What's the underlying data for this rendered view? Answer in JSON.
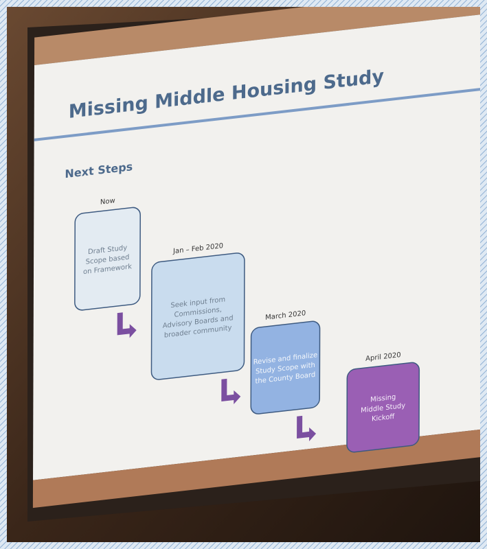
{
  "title": "Missing Middle Housing Study",
  "subtitle": "Next Steps",
  "steps": [
    {
      "date": "Now",
      "lines": [
        "Draft Study",
        "Scope based",
        "on Framework"
      ]
    },
    {
      "date": "Jan – Feb 2020",
      "lines": [
        "Seek input from",
        "Commissions,",
        "Advisory Boards and",
        "broader community"
      ]
    },
    {
      "date": "March 2020",
      "lines": [
        "Revise and finalize",
        "Study Scope with",
        "the County Board"
      ]
    },
    {
      "date": "April 2020",
      "lines": [
        "Missing",
        "Middle Study",
        "Kickoff"
      ]
    }
  ]
}
